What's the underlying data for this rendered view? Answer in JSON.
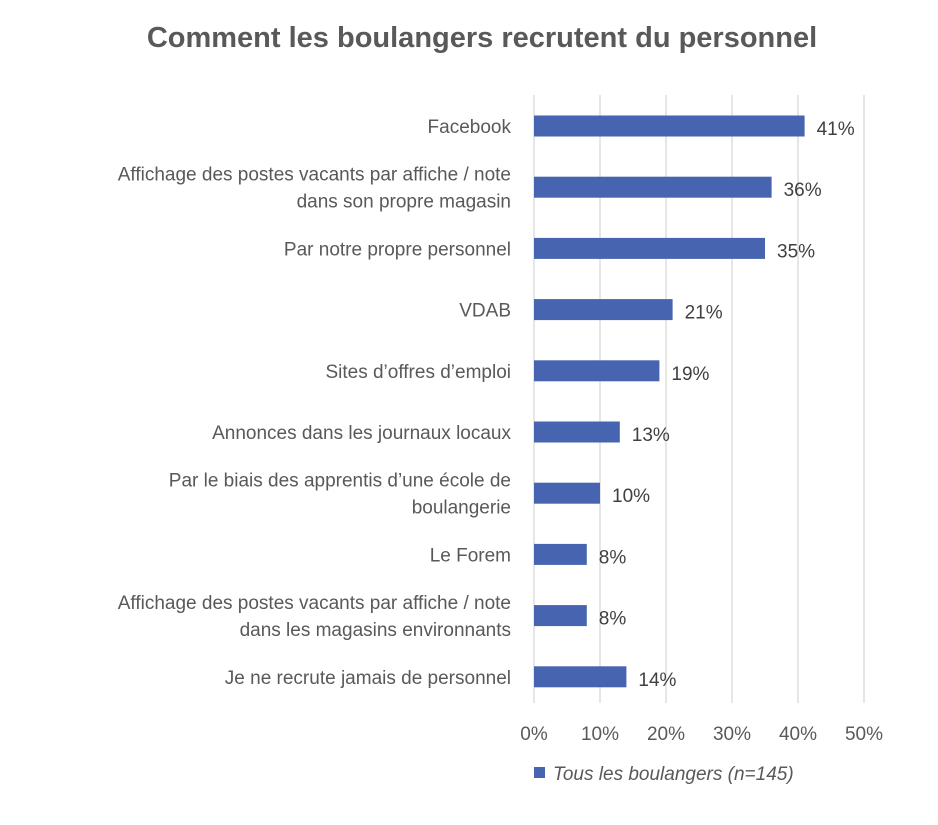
{
  "chart_data": {
    "type": "bar",
    "orientation": "horizontal",
    "title": "Comment les boulangers recrutent du personnel",
    "categories": [
      [
        "Facebook"
      ],
      [
        "Affichage des postes vacants par affiche / note",
        "dans son propre magasin"
      ],
      [
        "Par notre propre personnel"
      ],
      [
        "VDAB"
      ],
      [
        "Sites d’offres d’emploi"
      ],
      [
        "Annonces dans les journaux locaux"
      ],
      [
        "Par le biais des apprentis d’une école de",
        "boulangerie"
      ],
      [
        "Le Forem"
      ],
      [
        "Affichage des postes vacants par affiche / note",
        "dans les magasins environnants"
      ],
      [
        "Je ne recrute jamais de personnel"
      ]
    ],
    "series": [
      {
        "name": "Tous les boulangers (n=145)",
        "color": "#4664AF",
        "values": [
          41,
          36,
          35,
          21,
          19,
          13,
          10,
          8,
          8,
          14
        ],
        "labels": [
          "41%",
          "36%",
          "35%",
          "21%",
          "19%",
          "13%",
          "10%",
          "8%",
          "8%",
          "14%"
        ]
      }
    ],
    "xlim": [
      0,
      50
    ],
    "xticks": [
      0,
      10,
      20,
      30,
      40,
      50
    ],
    "xtick_labels": [
      "0%",
      "10%",
      "20%",
      "30%",
      "40%",
      "50%"
    ],
    "grid": true,
    "legend_position": "bottom"
  }
}
